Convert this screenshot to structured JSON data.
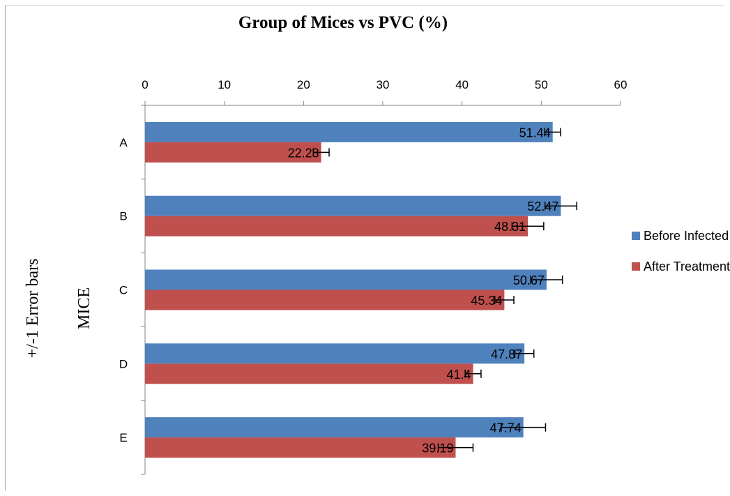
{
  "chart_data": {
    "type": "bar",
    "orientation": "horizontal",
    "title": "Group of Mices vs PVC (%)",
    "ylabel": "MICE",
    "side_label": "+/-1 Error bars",
    "categories": [
      "A",
      "B",
      "C",
      "D",
      "E"
    ],
    "xlim": [
      0,
      60
    ],
    "xticks": [
      0,
      10,
      20,
      30,
      40,
      50,
      60
    ],
    "x_axis_position": "top",
    "grid": false,
    "legend_position": "right",
    "series": [
      {
        "name": "Before Infected",
        "color": "#4f81bd",
        "values": [
          51.44,
          52.47,
          50.67,
          47.87,
          47.74
        ],
        "errors": [
          1.0,
          2.0,
          2.0,
          1.2,
          2.8
        ],
        "labels": [
          "51.44",
          "52.47",
          "50.67",
          "47.87",
          "47.74"
        ]
      },
      {
        "name": "After Treatment",
        "color": "#c0504d",
        "values": [
          22.23,
          48.31,
          45.34,
          41.4,
          39.19
        ],
        "errors": [
          1.0,
          2.0,
          1.2,
          1.0,
          2.2
        ],
        "labels": [
          "22.23",
          "48.31",
          "45.34",
          "41.4",
          "39.19"
        ]
      }
    ]
  }
}
